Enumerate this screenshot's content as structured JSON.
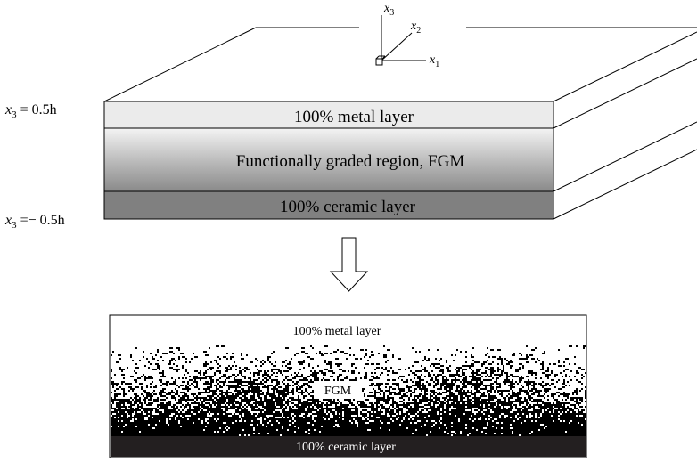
{
  "slab": {
    "top_layer_label": "100% metal layer",
    "middle_layer_label": "Functionally graded region, FGM",
    "bottom_layer_label": "100% ceramic layer",
    "top_coord": {
      "var": "x",
      "sub": "3",
      "rest": " = 0.5h"
    },
    "bottom_coord": {
      "var": "x",
      "sub": "3",
      "rest": " =− 0.5h"
    },
    "top_color": "#ebebeb",
    "bottom_color": "#808080"
  },
  "axes": {
    "x1": {
      "var": "x",
      "sub": "1"
    },
    "x2": {
      "var": "x",
      "sub": "2"
    },
    "x3": {
      "var": "x",
      "sub": "3"
    }
  },
  "microstructure": {
    "top_label": "100% metal layer",
    "middle_label": "FGM",
    "bottom_label": "100% ceramic layer",
    "ceramic_color": "#231f20"
  }
}
